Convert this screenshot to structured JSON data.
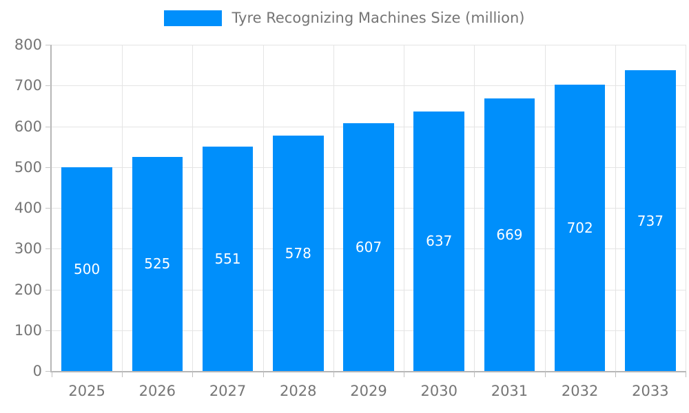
{
  "legend": {
    "label": "Tyre Recognizing Machines Size (million)"
  },
  "chart_data": {
    "type": "bar",
    "title": "Tyre Recognizing Machines Size (million)",
    "categories": [
      "2025",
      "2026",
      "2027",
      "2028",
      "2029",
      "2030",
      "2031",
      "2032",
      "2033"
    ],
    "values": [
      500,
      525,
      551,
      578,
      607,
      637,
      669,
      702,
      737
    ],
    "xlabel": "",
    "ylabel": "",
    "ylim": [
      0,
      800
    ],
    "ytick_step": 100,
    "grid": true,
    "legend_position": "top",
    "bar_width_fraction": 0.72,
    "bar_color": "#008FFB",
    "value_label_color": "#ffffff",
    "axis_label_color": "#757575",
    "grid_color": "#e4e4e4",
    "axis_line_color": "#b6b6b6"
  }
}
